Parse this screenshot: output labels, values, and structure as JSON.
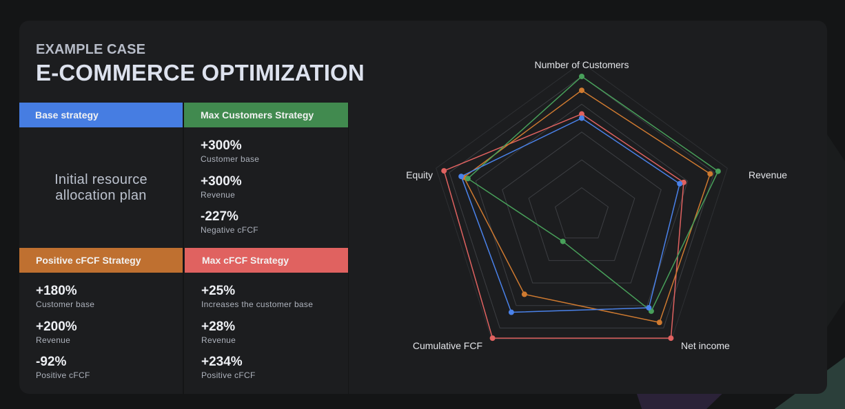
{
  "header": {
    "eyebrow": "EXAMPLE CASE",
    "title": "E-COMMERCE OPTIMIZATION"
  },
  "strategies": {
    "base": {
      "name": "Base strategy",
      "color": "#467de2",
      "description_line1": "Initial resource",
      "description_line2": "allocation plan"
    },
    "max_customers": {
      "name": "Max Customers Strategy",
      "color": "#418a4f",
      "stats": [
        {
          "value": "+300%",
          "label": "Customer base"
        },
        {
          "value": "+300%",
          "label": "Revenue"
        },
        {
          "value": "-227%",
          "label": "Negative cFCF"
        }
      ]
    },
    "positive_cfcf": {
      "name": "Positive cFCF Strategy",
      "color": "#bf7030",
      "stats": [
        {
          "value": "+180%",
          "label": "Customer base"
        },
        {
          "value": "+200%",
          "label": "Revenue"
        },
        {
          "value": "-92%",
          "label": "Positive cFCF"
        }
      ]
    },
    "max_cfcf": {
      "name": "Max cFCF Strategy",
      "color": "#e06260",
      "stats": [
        {
          "value": "+25%",
          "label": "Increases the customer base"
        },
        {
          "value": "+28%",
          "label": "Revenue"
        },
        {
          "value": "+234%",
          "label": "Positive cFCF"
        }
      ]
    }
  },
  "chart_data": {
    "type": "radar",
    "title": "",
    "axes": [
      "Number of Customers",
      "Revenue",
      "Net income",
      "Cumulative FCF",
      "Equity"
    ],
    "rmax": 100,
    "grid_levels": [
      20,
      40,
      60,
      80,
      100
    ],
    "grid": true,
    "legend": "none",
    "series": [
      {
        "name": "Max cFCF Strategy",
        "color": "#e06260",
        "values": [
          73,
          77,
          109,
          109,
          104
        ]
      },
      {
        "name": "Positive cFCF Strategy",
        "color": "#cf7a30",
        "values": [
          90,
          97,
          95,
          70,
          89
        ]
      },
      {
        "name": "Max Customers Strategy",
        "color": "#48a05a",
        "values": [
          100,
          103,
          85,
          23,
          86
        ]
      },
      {
        "name": "Base strategy",
        "color": "#4a82ea",
        "values": [
          70,
          74,
          82,
          86,
          91
        ]
      }
    ]
  }
}
